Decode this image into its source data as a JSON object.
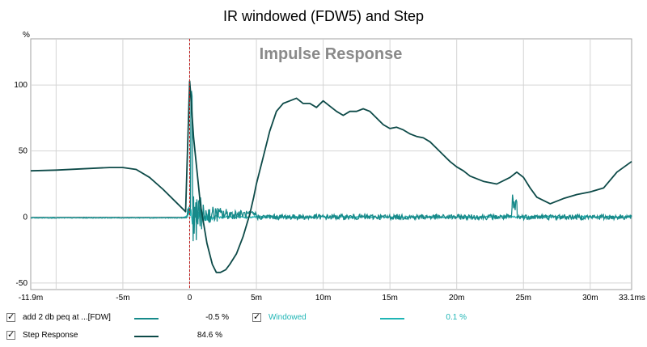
{
  "colors": {
    "step": "#0d4a48",
    "main_ir": "#178a8a",
    "windowed": "#1fb5b5",
    "grid": "#d4d4d4",
    "zero_line": "#b8b8b8",
    "marker": "#c01818",
    "plot_bg": "#ffffff",
    "border": "#a0a0a0"
  },
  "chart_data": {
    "type": "line",
    "title": "IR windowed (FDW5) and Step",
    "watermark": "Impulse Response",
    "ylabel": "%",
    "xlim": [
      -11.9,
      33.1
    ],
    "ylim": [
      -55,
      135
    ],
    "y_ticks": [
      100,
      50,
      0,
      -50
    ],
    "y_tick_labels": [
      "100",
      "50",
      "0",
      "-50"
    ],
    "x_tick_labels": [
      {
        "x": -11.9,
        "label": "-11.9m"
      },
      {
        "x": -5,
        "label": "-5m"
      },
      {
        "x": 0,
        "label": "0"
      },
      {
        "x": 5,
        "label": "5m"
      },
      {
        "x": 10,
        "label": "10m"
      },
      {
        "x": 15,
        "label": "15m"
      },
      {
        "x": 20,
        "label": "20m"
      },
      {
        "x": 25,
        "label": "25m"
      },
      {
        "x": 30,
        "label": "30m"
      },
      {
        "x": 33.1,
        "label": "33.1ms"
      }
    ],
    "x_grid": [
      -10,
      -5,
      0,
      5,
      10,
      15,
      20,
      25,
      30
    ],
    "marker_x": 0,
    "series": [
      {
        "name": "Step Response",
        "x": [
          -11.9,
          -10,
          -8,
          -6,
          -5,
          -4,
          -3,
          -2,
          -1,
          -0.3,
          0,
          0.05,
          0.3,
          0.8,
          1.3,
          1.7,
          2,
          2.3,
          2.7,
          3,
          3.5,
          4,
          4.5,
          4.8,
          5,
          5.5,
          6,
          6.5,
          7,
          7.5,
          8,
          8.5,
          9,
          9.5,
          10,
          10.5,
          11,
          11.5,
          12,
          12.5,
          13,
          13.5,
          14,
          14.5,
          15,
          15.5,
          16,
          16.5,
          17,
          17.5,
          18,
          18.5,
          19,
          19.5,
          20,
          20.5,
          21,
          22,
          23,
          24,
          24.5,
          25,
          25.5,
          26,
          27,
          28,
          29,
          30,
          31,
          32,
          33.1
        ],
        "values": [
          35,
          35.5,
          36.5,
          37.5,
          37.5,
          36,
          30,
          21,
          11,
          4,
          103,
          97,
          60,
          10,
          -20,
          -36,
          -42,
          -42,
          -40,
          -36,
          -28,
          -15,
          2,
          15,
          25,
          45,
          65,
          80,
          86,
          88,
          90,
          86,
          86,
          83,
          88,
          84,
          80,
          77,
          80,
          80,
          82,
          80,
          75,
          70,
          67,
          68,
          66,
          63,
          61,
          60,
          57,
          52,
          47,
          42,
          38,
          35,
          31,
          27,
          25,
          30,
          34,
          30,
          22,
          15,
          10,
          14,
          17,
          19,
          22,
          34,
          42
        ],
        "legend_value": "84.6 %"
      },
      {
        "name": "add 2 db peq at ...[FDW]",
        "legend_value": "-0.5 %"
      },
      {
        "name": "Windowed",
        "legend_value": "0.1 %"
      }
    ]
  },
  "legend": {
    "items": [
      {
        "label": "add 2 db peq at ...[FDW]",
        "value": "-0.5 %",
        "checked": "✓"
      },
      {
        "label": "Windowed",
        "value": "0.1 %",
        "checked": "✓"
      },
      {
        "label": "Step Response",
        "value": "84.6 %",
        "checked": "✓"
      }
    ]
  }
}
